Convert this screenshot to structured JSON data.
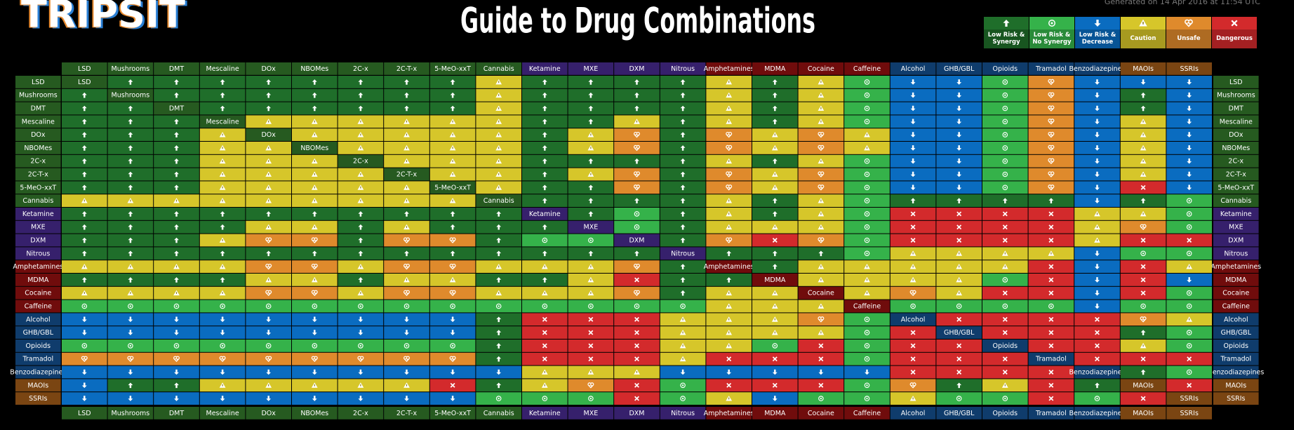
{
  "logo": "TRIPSIT",
  "title": "Guide to Drug Combinations",
  "generated": "Generated on 14 Apr 2016 at 11:54 UTC",
  "legend": [
    {
      "label": "Low Risk & Synergy",
      "color": "#1f6e2a"
    },
    {
      "label": "Low Risk & No Synergy",
      "color": "#35b24a"
    },
    {
      "label": "Low Risk & Decrease",
      "color": "#0a6cc0"
    },
    {
      "label": "Caution",
      "color": "#d6c62a"
    },
    {
      "label": "Unsafe",
      "color": "#df8a2c"
    },
    {
      "label": "Dangerous",
      "color": "#d32a2c"
    }
  ],
  "drugs": [
    "LSD",
    "Mushrooms",
    "DMT",
    "Mescaline",
    "DOx",
    "NBOMes",
    "2C-x",
    "2C-T-x",
    "5-MeO-xxT",
    "Cannabis",
    "Ketamine",
    "MXE",
    "DXM",
    "Nitrous",
    "Amphetamines",
    "MDMA",
    "Cocaine",
    "Caffeine",
    "Alcohol",
    "GHB/GBL",
    "Opioids",
    "Tramadol",
    "Benzodiazepines",
    "MAOIs",
    "SSRIs"
  ],
  "drug_colors": [
    "#265a20",
    "#265a20",
    "#265a20",
    "#265a20",
    "#265a20",
    "#265a20",
    "#265a20",
    "#265a20",
    "#265a20",
    "#265a20",
    "#36206c",
    "#36206c",
    "#36206c",
    "#36206c",
    "#700c0c",
    "#700c0c",
    "#700c0c",
    "#700c0c",
    "#0f3c6c",
    "#0f3c6c",
    "#0f3c6c",
    "#0f3c6c",
    "#0f3c6c",
    "#7a4512",
    "#7a4512"
  ],
  "matrix": [
    [
      null,
      0,
      0,
      0,
      0,
      0,
      0,
      0,
      0,
      3,
      0,
      0,
      0,
      0,
      3,
      0,
      3,
      1,
      2,
      2,
      1,
      4,
      2,
      2,
      2
    ],
    [
      0,
      null,
      0,
      0,
      0,
      0,
      0,
      0,
      0,
      3,
      0,
      0,
      0,
      0,
      3,
      0,
      3,
      1,
      2,
      2,
      1,
      4,
      2,
      0,
      2
    ],
    [
      0,
      0,
      null,
      0,
      0,
      0,
      0,
      0,
      0,
      3,
      0,
      0,
      0,
      0,
      3,
      0,
      3,
      1,
      2,
      2,
      1,
      4,
      2,
      0,
      2
    ],
    [
      0,
      0,
      0,
      null,
      3,
      3,
      3,
      3,
      3,
      3,
      0,
      0,
      3,
      0,
      3,
      0,
      3,
      1,
      2,
      2,
      1,
      4,
      2,
      3,
      2
    ],
    [
      0,
      0,
      0,
      3,
      null,
      3,
      3,
      3,
      3,
      3,
      0,
      3,
      4,
      0,
      4,
      3,
      4,
      3,
      2,
      2,
      1,
      4,
      2,
      3,
      2
    ],
    [
      0,
      0,
      0,
      3,
      3,
      null,
      3,
      3,
      3,
      3,
      0,
      3,
      4,
      0,
      4,
      3,
      4,
      3,
      2,
      2,
      1,
      4,
      2,
      3,
      2
    ],
    [
      0,
      0,
      0,
      3,
      3,
      3,
      null,
      3,
      3,
      3,
      0,
      0,
      0,
      0,
      3,
      0,
      3,
      1,
      2,
      2,
      1,
      4,
      2,
      3,
      2
    ],
    [
      0,
      0,
      0,
      3,
      3,
      3,
      3,
      null,
      3,
      3,
      0,
      3,
      4,
      0,
      4,
      3,
      4,
      1,
      2,
      2,
      1,
      4,
      2,
      3,
      2
    ],
    [
      0,
      0,
      0,
      3,
      3,
      3,
      3,
      3,
      null,
      3,
      0,
      0,
      4,
      0,
      4,
      3,
      4,
      1,
      2,
      2,
      1,
      4,
      2,
      5,
      2
    ],
    [
      3,
      3,
      3,
      3,
      3,
      3,
      3,
      3,
      3,
      null,
      0,
      0,
      0,
      0,
      3,
      0,
      3,
      1,
      0,
      0,
      0,
      0,
      2,
      0,
      1
    ],
    [
      0,
      0,
      0,
      0,
      0,
      0,
      0,
      0,
      0,
      0,
      null,
      0,
      1,
      0,
      3,
      0,
      3,
      1,
      5,
      5,
      5,
      5,
      3,
      3,
      1
    ],
    [
      0,
      0,
      0,
      0,
      3,
      3,
      0,
      3,
      0,
      0,
      0,
      null,
      1,
      0,
      3,
      3,
      3,
      1,
      5,
      5,
      5,
      5,
      3,
      4,
      1
    ],
    [
      0,
      0,
      0,
      3,
      4,
      4,
      0,
      4,
      4,
      0,
      1,
      1,
      null,
      0,
      4,
      5,
      4,
      1,
      5,
      5,
      5,
      5,
      3,
      5,
      5
    ],
    [
      0,
      0,
      0,
      0,
      0,
      0,
      0,
      0,
      0,
      0,
      0,
      0,
      0,
      null,
      0,
      0,
      0,
      1,
      3,
      3,
      3,
      3,
      2,
      1,
      1
    ],
    [
      3,
      3,
      3,
      3,
      4,
      4,
      3,
      4,
      4,
      3,
      3,
      3,
      4,
      0,
      null,
      0,
      3,
      3,
      3,
      3,
      3,
      5,
      2,
      5,
      3
    ],
    [
      0,
      0,
      0,
      0,
      3,
      3,
      0,
      3,
      3,
      0,
      0,
      3,
      5,
      0,
      0,
      null,
      3,
      3,
      3,
      3,
      1,
      5,
      2,
      5,
      2
    ],
    [
      3,
      3,
      3,
      3,
      4,
      4,
      3,
      4,
      4,
      3,
      3,
      3,
      4,
      0,
      3,
      3,
      null,
      3,
      4,
      3,
      5,
      5,
      2,
      5,
      1
    ],
    [
      1,
      1,
      1,
      1,
      1,
      1,
      1,
      1,
      1,
      1,
      1,
      1,
      1,
      1,
      3,
      3,
      3,
      null,
      1,
      1,
      1,
      1,
      2,
      1,
      1
    ],
    [
      2,
      2,
      2,
      2,
      2,
      2,
      2,
      2,
      2,
      0,
      5,
      5,
      5,
      3,
      3,
      3,
      4,
      1,
      null,
      5,
      5,
      5,
      5,
      4,
      3
    ],
    [
      2,
      2,
      2,
      2,
      2,
      2,
      2,
      2,
      2,
      0,
      5,
      5,
      5,
      3,
      3,
      3,
      3,
      1,
      5,
      null,
      5,
      5,
      5,
      0,
      1
    ],
    [
      1,
      1,
      1,
      1,
      1,
      1,
      1,
      1,
      1,
      0,
      5,
      5,
      5,
      3,
      3,
      1,
      5,
      1,
      5,
      5,
      null,
      5,
      5,
      3,
      1
    ],
    [
      4,
      4,
      4,
      4,
      4,
      4,
      4,
      4,
      4,
      0,
      5,
      5,
      5,
      3,
      5,
      5,
      5,
      1,
      5,
      5,
      5,
      null,
      5,
      5,
      5
    ],
    [
      2,
      2,
      2,
      2,
      2,
      2,
      2,
      2,
      2,
      2,
      3,
      3,
      3,
      2,
      2,
      2,
      2,
      2,
      5,
      5,
      5,
      5,
      null,
      0,
      1
    ],
    [
      2,
      0,
      0,
      3,
      3,
      3,
      3,
      3,
      5,
      0,
      3,
      4,
      5,
      1,
      5,
      5,
      5,
      1,
      4,
      0,
      3,
      5,
      0,
      null,
      5
    ],
    [
      2,
      2,
      2,
      2,
      2,
      2,
      2,
      2,
      2,
      1,
      1,
      1,
      5,
      1,
      3,
      2,
      1,
      1,
      3,
      1,
      1,
      5,
      1,
      5,
      null
    ]
  ]
}
